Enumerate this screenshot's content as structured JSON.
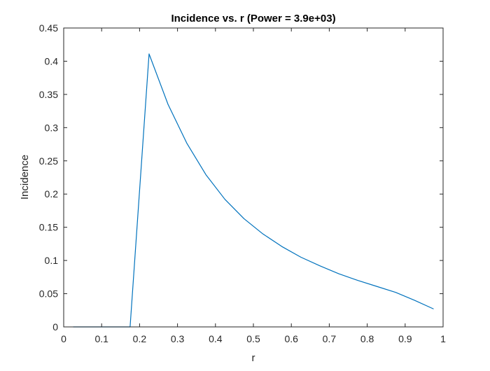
{
  "chart_data": {
    "type": "line",
    "title": "Incidence vs. r (Power = 3.9e+03)",
    "xlabel": "r",
    "ylabel": "Incidence",
    "xlim": [
      0,
      1
    ],
    "ylim": [
      0,
      0.45
    ],
    "xticks": [
      0,
      0.1,
      0.2,
      0.3,
      0.4,
      0.5,
      0.6,
      0.7,
      0.8,
      0.9,
      1
    ],
    "xtick_labels": [
      "0",
      "0.1",
      "0.2",
      "0.3",
      "0.4",
      "0.5",
      "0.6",
      "0.7",
      "0.8",
      "0.9",
      "1"
    ],
    "yticks": [
      0,
      0.05,
      0.1,
      0.15,
      0.2,
      0.25,
      0.3,
      0.35,
      0.4,
      0.45
    ],
    "ytick_labels": [
      "0",
      "0.05",
      "0.1",
      "0.15",
      "0.2",
      "0.25",
      "0.3",
      "0.35",
      "0.4",
      "0.45"
    ],
    "grid": false,
    "series": [
      {
        "color": "#0072BD",
        "x": [
          0.025,
          0.075,
          0.125,
          0.175,
          0.225,
          0.275,
          0.325,
          0.375,
          0.425,
          0.475,
          0.525,
          0.575,
          0.625,
          0.675,
          0.725,
          0.775,
          0.825,
          0.875,
          0.925,
          0.975
        ],
        "y": [
          0,
          0,
          0,
          0,
          0.411,
          0.335,
          0.276,
          0.229,
          0.192,
          0.163,
          0.14,
          0.121,
          0.105,
          0.092,
          0.08,
          0.07,
          0.061,
          0.052,
          0.04,
          0.027
        ]
      }
    ]
  }
}
